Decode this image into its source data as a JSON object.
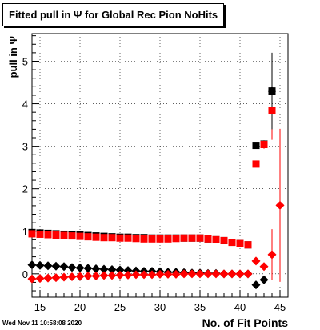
{
  "chart_data": {
    "type": "scatter",
    "title": "Fitted pull in Ψ  for Global Rec Pion NoHits",
    "xlabel": "No. of Fit Points",
    "ylabel": "pull in  Ψ",
    "xlim": [
      14,
      46
    ],
    "ylim": [
      -0.55,
      5.65
    ],
    "xticks": [
      15,
      20,
      25,
      30,
      35,
      40,
      45
    ],
    "yticks": [
      0,
      1,
      2,
      3,
      4,
      5
    ],
    "grid": true,
    "series": [
      {
        "color": "#000000",
        "marker": "square",
        "points": [
          {
            "x": 14,
            "y": 0.97
          },
          {
            "x": 15,
            "y": 0.96
          },
          {
            "x": 16,
            "y": 0.95
          },
          {
            "x": 17,
            "y": 0.94
          },
          {
            "x": 18,
            "y": 0.93
          },
          {
            "x": 19,
            "y": 0.92
          },
          {
            "x": 20,
            "y": 0.91
          },
          {
            "x": 21,
            "y": 0.9
          },
          {
            "x": 22,
            "y": 0.89
          },
          {
            "x": 23,
            "y": 0.88
          },
          {
            "x": 24,
            "y": 0.87
          },
          {
            "x": 25,
            "y": 0.86
          },
          {
            "x": 26,
            "y": 0.86
          },
          {
            "x": 27,
            "y": 0.85
          },
          {
            "x": 28,
            "y": 0.85
          },
          {
            "x": 29,
            "y": 0.84
          },
          {
            "x": 30,
            "y": 0.84
          },
          {
            "x": 31,
            "y": 0.84
          },
          {
            "x": 32,
            "y": 0.84
          },
          {
            "x": 33,
            "y": 0.84
          },
          {
            "x": 34,
            "y": 0.84
          },
          {
            "x": 35,
            "y": 0.84
          },
          {
            "x": 36,
            "y": 0.82
          },
          {
            "x": 37,
            "y": 0.8
          },
          {
            "x": 38,
            "y": 0.78
          },
          {
            "x": 39,
            "y": 0.74
          },
          {
            "x": 40,
            "y": 0.71
          },
          {
            "x": 41,
            "y": 0.68
          },
          {
            "x": 42,
            "y": 3.02
          },
          {
            "x": 43,
            "y": 3.05
          },
          {
            "x": 44,
            "y": 4.3
          }
        ]
      },
      {
        "color": "#ff0000",
        "marker": "square",
        "points": [
          {
            "x": 14,
            "y": 0.94
          },
          {
            "x": 15,
            "y": 0.93
          },
          {
            "x": 16,
            "y": 0.92
          },
          {
            "x": 17,
            "y": 0.91
          },
          {
            "x": 18,
            "y": 0.9
          },
          {
            "x": 19,
            "y": 0.89
          },
          {
            "x": 20,
            "y": 0.88
          },
          {
            "x": 21,
            "y": 0.87
          },
          {
            "x": 22,
            "y": 0.86
          },
          {
            "x": 23,
            "y": 0.85
          },
          {
            "x": 24,
            "y": 0.85
          },
          {
            "x": 25,
            "y": 0.84
          },
          {
            "x": 26,
            "y": 0.84
          },
          {
            "x": 27,
            "y": 0.83
          },
          {
            "x": 28,
            "y": 0.82
          },
          {
            "x": 29,
            "y": 0.82
          },
          {
            "x": 30,
            "y": 0.82
          },
          {
            "x": 31,
            "y": 0.82
          },
          {
            "x": 32,
            "y": 0.83
          },
          {
            "x": 33,
            "y": 0.84
          },
          {
            "x": 34,
            "y": 0.84
          },
          {
            "x": 35,
            "y": 0.84
          },
          {
            "x": 36,
            "y": 0.82
          },
          {
            "x": 37,
            "y": 0.8
          },
          {
            "x": 38,
            "y": 0.78
          },
          {
            "x": 39,
            "y": 0.74
          },
          {
            "x": 40,
            "y": 0.71
          },
          {
            "x": 41,
            "y": 0.68
          },
          {
            "x": 42,
            "y": 2.58,
            "err": 0.06
          },
          {
            "x": 43,
            "y": 3.04,
            "err": 0.1
          },
          {
            "x": 44,
            "y": 3.85,
            "err": 0.7
          }
        ]
      },
      {
        "color": "#000000",
        "marker": "diamond",
        "points": [
          {
            "x": 14,
            "y": 0.21
          },
          {
            "x": 15,
            "y": 0.2
          },
          {
            "x": 16,
            "y": 0.19
          },
          {
            "x": 17,
            "y": 0.18
          },
          {
            "x": 18,
            "y": 0.17
          },
          {
            "x": 19,
            "y": 0.15
          },
          {
            "x": 20,
            "y": 0.14
          },
          {
            "x": 21,
            "y": 0.13
          },
          {
            "x": 22,
            "y": 0.12
          },
          {
            "x": 23,
            "y": 0.11
          },
          {
            "x": 24,
            "y": 0.1
          },
          {
            "x": 25,
            "y": 0.09
          },
          {
            "x": 26,
            "y": 0.08
          },
          {
            "x": 27,
            "y": 0.07
          },
          {
            "x": 28,
            "y": 0.06
          },
          {
            "x": 29,
            "y": 0.06
          },
          {
            "x": 30,
            "y": 0.05
          },
          {
            "x": 31,
            "y": 0.04
          },
          {
            "x": 32,
            "y": 0.04
          },
          {
            "x": 33,
            "y": 0.03
          },
          {
            "x": 34,
            "y": 0.02
          },
          {
            "x": 35,
            "y": 0.02
          },
          {
            "x": 36,
            "y": 0.01
          },
          {
            "x": 37,
            "y": 0.01
          },
          {
            "x": 38,
            "y": 0.0
          },
          {
            "x": 39,
            "y": 0.0
          },
          {
            "x": 40,
            "y": 0.0
          },
          {
            "x": 41,
            "y": 0.0
          },
          {
            "x": 42,
            "y": -0.26
          },
          {
            "x": 43,
            "y": -0.14
          },
          {
            "x": 44,
            "y": 4.3,
            "err": 0.9
          }
        ]
      },
      {
        "color": "#ff0000",
        "marker": "diamond",
        "points": [
          {
            "x": 14,
            "y": -0.12
          },
          {
            "x": 15,
            "y": -0.11
          },
          {
            "x": 16,
            "y": -0.1
          },
          {
            "x": 17,
            "y": -0.09
          },
          {
            "x": 18,
            "y": -0.08
          },
          {
            "x": 19,
            "y": -0.07
          },
          {
            "x": 20,
            "y": -0.06
          },
          {
            "x": 21,
            "y": -0.05
          },
          {
            "x": 22,
            "y": -0.05
          },
          {
            "x": 23,
            "y": -0.04
          },
          {
            "x": 24,
            "y": -0.04
          },
          {
            "x": 25,
            "y": -0.03
          },
          {
            "x": 26,
            "y": -0.03
          },
          {
            "x": 27,
            "y": -0.02
          },
          {
            "x": 28,
            "y": -0.02
          },
          {
            "x": 29,
            "y": -0.02
          },
          {
            "x": 30,
            "y": -0.01
          },
          {
            "x": 31,
            "y": -0.01
          },
          {
            "x": 32,
            "y": -0.01
          },
          {
            "x": 33,
            "y": 0.0
          },
          {
            "x": 34,
            "y": 0.0
          },
          {
            "x": 35,
            "y": 0.0
          },
          {
            "x": 36,
            "y": 0.0
          },
          {
            "x": 37,
            "y": 0.0
          },
          {
            "x": 38,
            "y": 0.0
          },
          {
            "x": 39,
            "y": 0.0
          },
          {
            "x": 40,
            "y": 0.0
          },
          {
            "x": 41,
            "y": 0.0
          },
          {
            "x": 42,
            "y": 0.3
          },
          {
            "x": 43,
            "y": 0.17
          },
          {
            "x": 44,
            "y": 0.45,
            "err": 0.6
          },
          {
            "x": 45,
            "y": 1.61,
            "err": 1.8
          }
        ]
      }
    ]
  },
  "footer": {
    "timestamp": "Wed Nov 11 10:58:08 2020"
  }
}
